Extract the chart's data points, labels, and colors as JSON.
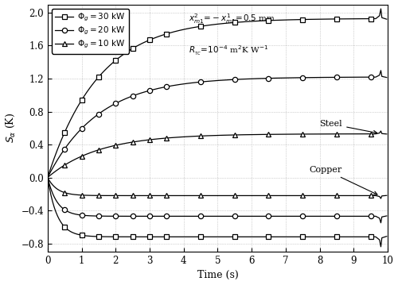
{
  "xlabel": "Time (s)",
  "ylabel": "$S_{\\alpha}$ (K)",
  "xlim": [
    0,
    10
  ],
  "ylim": [
    -0.9,
    2.1
  ],
  "yticks": [
    -0.8,
    -0.4,
    0.0,
    0.4,
    0.8,
    1.2,
    1.6,
    2.0
  ],
  "xticks": [
    0,
    1,
    2,
    3,
    4,
    5,
    6,
    7,
    8,
    9,
    10
  ],
  "annotation_text1": "$x^{2}_{m1}\\!=\\!-x^{1}_{m1}\\!=\\!0.5$ mm",
  "annotation_text2": "$R_{_{TC}}\\!=\\!10^{-4}$ m$^{2}$K W$^{-1}$",
  "legend_entries": [
    {
      "label": "$\\Phi_g = 30$ kW",
      "marker": "s"
    },
    {
      "label": "$\\Phi_g = 20$ kW",
      "marker": "o"
    },
    {
      "label": "$\\Phi_g = 10$ kW",
      "marker": "^"
    }
  ],
  "steel_label": "Steel",
  "copper_label": "Copper",
  "grid_color": "#aaaaaa",
  "tau_steel": 1.5,
  "tau_copper": 0.28,
  "t_main_end": 9.65,
  "t_spike_peak": 9.8,
  "t_plot_end": 9.97,
  "steel_steady_30": 1.93,
  "steel_steady_20": 1.22,
  "steel_steady_10": 0.53,
  "copper_steady_30": -0.72,
  "copper_steady_20": -0.47,
  "copper_steady_10": -0.22,
  "steel_spike_extra_30": 0.12,
  "steel_spike_extra_20": 0.08,
  "steel_spike_extra_10": 0.035,
  "copper_spike_extra_30": -0.12,
  "copper_spike_extra_20": -0.08,
  "copper_spike_extra_10": -0.035,
  "marker_times": [
    0.5,
    1.0,
    1.5,
    2.0,
    2.5,
    3.0,
    3.5,
    4.5,
    5.5,
    6.5,
    7.5,
    8.5,
    9.5
  ]
}
